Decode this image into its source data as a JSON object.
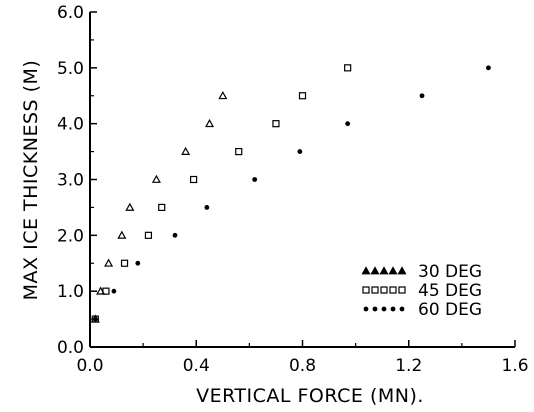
{
  "chart_data": {
    "type": "scatter",
    "xlabel": "VERTICAL FORCE (MN).",
    "ylabel": "MAX ICE THICKNESS (M)",
    "xlim": [
      0.0,
      1.6
    ],
    "ylim": [
      0.0,
      6.0
    ],
    "xticks": [
      "0.0",
      "0.4",
      "0.8",
      "1.2",
      "1.6"
    ],
    "yticks": [
      "0.0",
      "1.0",
      "2.0",
      "3.0",
      "4.0",
      "5.0",
      "6.0"
    ],
    "grid": false,
    "legend_position": "bottom-right",
    "series": [
      {
        "name": "30 DEG",
        "marker": "triangle",
        "points": [
          {
            "x": 0.02,
            "y": 0.5
          },
          {
            "x": 0.04,
            "y": 1.0
          },
          {
            "x": 0.07,
            "y": 1.5
          },
          {
            "x": 0.12,
            "y": 2.0
          },
          {
            "x": 0.15,
            "y": 2.5
          },
          {
            "x": 0.25,
            "y": 3.0
          },
          {
            "x": 0.36,
            "y": 3.5
          },
          {
            "x": 0.45,
            "y": 4.0
          },
          {
            "x": 0.5,
            "y": 4.5
          }
        ]
      },
      {
        "name": "45 DEG",
        "marker": "square",
        "points": [
          {
            "x": 0.02,
            "y": 0.5
          },
          {
            "x": 0.06,
            "y": 1.0
          },
          {
            "x": 0.13,
            "y": 1.5
          },
          {
            "x": 0.22,
            "y": 2.0
          },
          {
            "x": 0.27,
            "y": 2.5
          },
          {
            "x": 0.39,
            "y": 3.0
          },
          {
            "x": 0.56,
            "y": 3.5
          },
          {
            "x": 0.7,
            "y": 4.0
          },
          {
            "x": 0.8,
            "y": 4.5
          },
          {
            "x": 0.97,
            "y": 5.0
          }
        ]
      },
      {
        "name": "60 DEG",
        "marker": "dot",
        "points": [
          {
            "x": 0.02,
            "y": 0.5
          },
          {
            "x": 0.09,
            "y": 1.0
          },
          {
            "x": 0.18,
            "y": 1.5
          },
          {
            "x": 0.32,
            "y": 2.0
          },
          {
            "x": 0.44,
            "y": 2.5
          },
          {
            "x": 0.62,
            "y": 3.0
          },
          {
            "x": 0.79,
            "y": 3.5
          },
          {
            "x": 0.97,
            "y": 4.0
          },
          {
            "x": 1.25,
            "y": 4.5
          },
          {
            "x": 1.5,
            "y": 5.0
          }
        ]
      }
    ]
  }
}
